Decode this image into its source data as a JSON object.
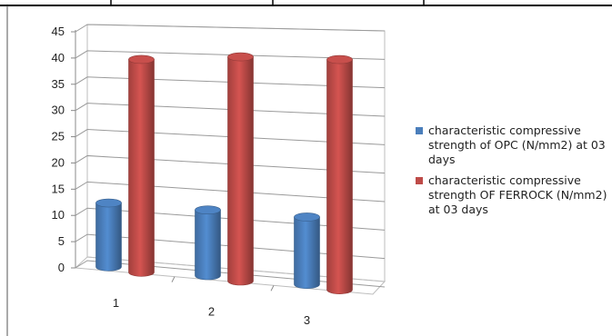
{
  "colors": {
    "opc": "#4a7ebb",
    "ferrock": "#be4b48"
  },
  "legend": {
    "opc": "characteristic compressive strength of OPC  (N/mm2) at 03 days",
    "ferrock": "characteristic compressive strength OF FERROCK (N/mm2) at 03 days"
  },
  "chart_data": {
    "type": "bar",
    "categories": [
      "1",
      "2",
      "3"
    ],
    "series": [
      {
        "name": "characteristic compressive strength of OPC  (N/mm2) at 03 days",
        "values": [
          12,
          12,
          12
        ]
      },
      {
        "name": "characteristic compressive strength OF FERROCK (N/mm2) at 03 days",
        "values": [
          40,
          41,
          41
        ]
      }
    ],
    "yticks": [
      0,
      5,
      10,
      15,
      20,
      25,
      30,
      35,
      40,
      45
    ],
    "ylim": [
      0,
      45
    ],
    "grid": true,
    "legend_position": "right",
    "style": "3d-cylinder"
  }
}
